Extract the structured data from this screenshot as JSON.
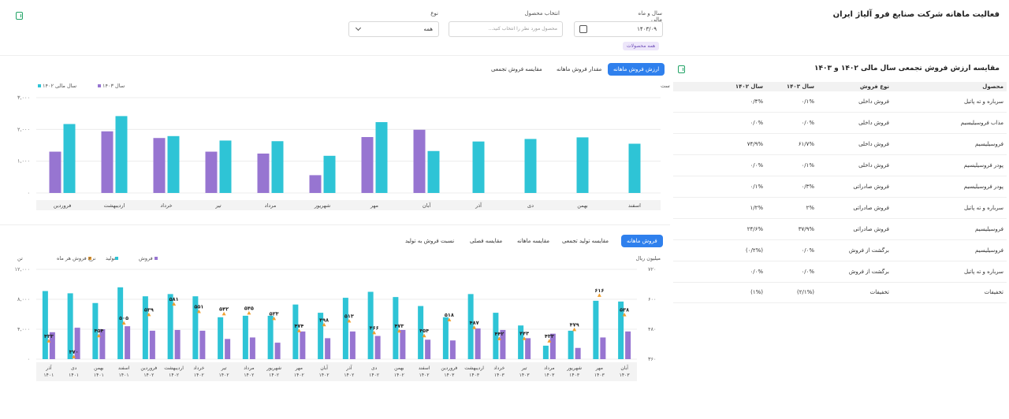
{
  "page": {
    "title": "فعالیت ماهانه شرکت صنایع فرو آلیاژ ایران",
    "filters": {
      "year_month_label": "سال و ماه مالی",
      "year_month_value": "۱۴۰۳/۰۹",
      "product_label": "انتخاب محصول",
      "product_placeholder": "محصول مورد نظر را انتخاب کنید...",
      "type_label": "نوع",
      "type_value": "همه",
      "all_products_chip": "همه محصولات"
    }
  },
  "comparison": {
    "title": "مقایسه ارزش فروش تجمعی سال مالی ۱۴۰۲ و ۱۴۰۳",
    "headers": [
      "محصول",
      "نوع فروش",
      "سال ۱۴۰۳",
      "سال ۱۴۰۲"
    ],
    "rows": [
      [
        "سرباره و ته پاتیل",
        "فروش داخلی",
        "۰/۱%",
        "۰/۴%"
      ],
      [
        "مذاب فروسیلیسیم",
        "فروش داخلی",
        "۰/۰%",
        "۰/۰%"
      ],
      [
        "فروسیلیسیم",
        "فروش داخلی",
        "۶۱/۷%",
        "۷۴/۹%"
      ],
      [
        "پودر فروسیلیسیم",
        "فروش داخلی",
        "۰/۱%",
        "۰/۰%"
      ],
      [
        "پودر فروسیلیسیم",
        "فروش صادراتی",
        "۰/۳%",
        "۰/۱%"
      ],
      [
        "سرباره و ته پاتیل",
        "فروش صادراتی",
        "۲%",
        "۱/۲%"
      ],
      [
        "فروسیلیسیم",
        "فروش صادراتی",
        "۳۷/۹%",
        "۲۴/۶%"
      ],
      [
        "فروسیلیسیم",
        "برگشت از فروش",
        "۰/۰%",
        "(۰/۲%)"
      ],
      [
        "سرباره و ته پاتیل",
        "برگشت از فروش",
        "۰/۰%",
        "۰/۰%"
      ],
      [
        "تخفیفات",
        "تخفیفات",
        "(۲/۱%)",
        "(۱%)"
      ]
    ]
  },
  "top_tabs": [
    "ارزش فروش ماهانه",
    "مقدار فروش ماهانه",
    "مقایسه فروش تجمعی"
  ],
  "bottom_tabs": [
    "فروش ماهانه",
    "مقایسه تولید تجمعی",
    "مقایسه ماهانه",
    "مقایسه فصلی",
    "نسبت فروش به تولید"
  ],
  "icons": [
    "excel-icon",
    "calendar-icon",
    "chevron-down-icon"
  ],
  "colors": {
    "teal": "#2ec4d6",
    "purple": "#9775d1",
    "orange": "#f0a030",
    "accent": "#2f80ed"
  },
  "chart_data": [
    {
      "type": "bar",
      "subtitle": "اعداد بر اساس میلیارد ریال است",
      "categories": [
        "اسفند",
        "بهمن",
        "دی",
        "آذر",
        "آبان",
        "مهر",
        "شهریور",
        "مرداد",
        "تیر",
        "خرداد",
        "اردیبهشت",
        "فروردین"
      ],
      "series": [
        {
          "name": "سال مالی ۱۴۰۲",
          "values": [
            1550,
            1750,
            1700,
            1620,
            1320,
            2230,
            1170,
            1630,
            1650,
            1790,
            2420,
            2170
          ]
        },
        {
          "name": "سال ۱۴۰۳",
          "values": [
            null,
            null,
            null,
            null,
            1990,
            1760,
            560,
            1240,
            1300,
            1730,
            1940,
            1300
          ]
        }
      ],
      "y_ticks": [
        "۰",
        "۱,۰۰۰",
        "۲,۰۰۰",
        "۳,۰۰۰"
      ],
      "ylim": [
        0,
        3000
      ],
      "legend": "top-left"
    },
    {
      "type": "bar",
      "left_unit": "تن",
      "right_unit": "میلیون ریال",
      "categories": [
        [
          "آبان",
          "۱۴۰۳"
        ],
        [
          "مهر",
          "۱۴۰۳"
        ],
        [
          "شهریور",
          "۱۴۰۳"
        ],
        [
          "مرداد",
          "۱۴۰۳"
        ],
        [
          "تیر",
          "۱۴۰۳"
        ],
        [
          "خرداد",
          "۱۴۰۳"
        ],
        [
          "اردیبهشت",
          "۱۴۰۳"
        ],
        [
          "فروردین",
          "۱۴۰۳"
        ],
        [
          "اسفند",
          "۱۴۰۲"
        ],
        [
          "بهمن",
          "۱۴۰۲"
        ],
        [
          "دی",
          "۱۴۰۲"
        ],
        [
          "آذر",
          "۱۴۰۲"
        ],
        [
          "آبان",
          "۱۴۰۲"
        ],
        [
          "مهر",
          "۱۴۰۲"
        ],
        [
          "شهریور",
          "۱۴۰۲"
        ],
        [
          "مرداد",
          "۱۴۰۲"
        ],
        [
          "تیر",
          "۱۴۰۲"
        ],
        [
          "خرداد",
          "۱۴۰۲"
        ],
        [
          "اردیبهشت",
          "۱۴۰۲"
        ],
        [
          "فروردین",
          "۱۴۰۲"
        ],
        [
          "اسفند",
          "۱۴۰۱"
        ],
        [
          "بهمن",
          "۱۴۰۱"
        ],
        [
          "دی",
          "۱۴۰۱"
        ],
        [
          "آذر",
          "۱۴۰۱"
        ]
      ],
      "series": [
        {
          "name": "فروش",
          "values": [
            3700,
            2900,
            1500,
            3400,
            2800,
            3900,
            4100,
            2500,
            2600,
            3900,
            3100,
            3700,
            2800,
            3700,
            2200,
            2900,
            2700,
            3800,
            3900,
            3800,
            4400,
            4000,
            4200,
            3600
          ]
        },
        {
          "name": "تولید",
          "values": [
            7700,
            7800,
            3800,
            1800,
            4500,
            6200,
            8700,
            5600,
            7100,
            8300,
            9000,
            8200,
            6200,
            7300,
            5800,
            5800,
            5600,
            8400,
            8700,
            8400,
            9600,
            7500,
            8800,
            9100
          ]
        },
        {
          "name": "نرخ فروش هر ماه",
          "values": [
            538,
            616,
            479,
            433,
            443,
            442,
            487,
            518,
            454,
            473,
            466,
            513,
            498,
            474,
            523,
            545,
            542,
            551,
            581,
            539,
            505,
            454,
            370,
            433
          ]
        }
      ],
      "point_labels": [
        "۵۳۸",
        "۶۱۶",
        "۴۷۹",
        "۴۳۳",
        "۴۴۳",
        "۴۴۲",
        "۴۸۷",
        "۵۱۸",
        "۴۵۴",
        "۴۷۳",
        "۴۶۶",
        "۵۱۳",
        "۴۹۸",
        "۴۷۴",
        "۵۲۳",
        "۵۴۵",
        "۵۴۲",
        "۵۵۱",
        "۵۸۱",
        "۵۳۹",
        "۵۰۵",
        "۴۵۴",
        "۳۷۰",
        "۴۳۳"
      ],
      "y_left_ticks": [
        "۰",
        "۴,۰۰۰",
        "۸,۰۰۰",
        "۱۲,۰۰۰"
      ],
      "y_right_ticks": [
        "۳۶۰",
        "۴۸۰",
        "۶۰۰",
        "۷۲۰"
      ],
      "ylim_left": [
        0,
        12000
      ],
      "ylim_right": [
        360,
        720
      ],
      "legend": "top-left"
    }
  ]
}
